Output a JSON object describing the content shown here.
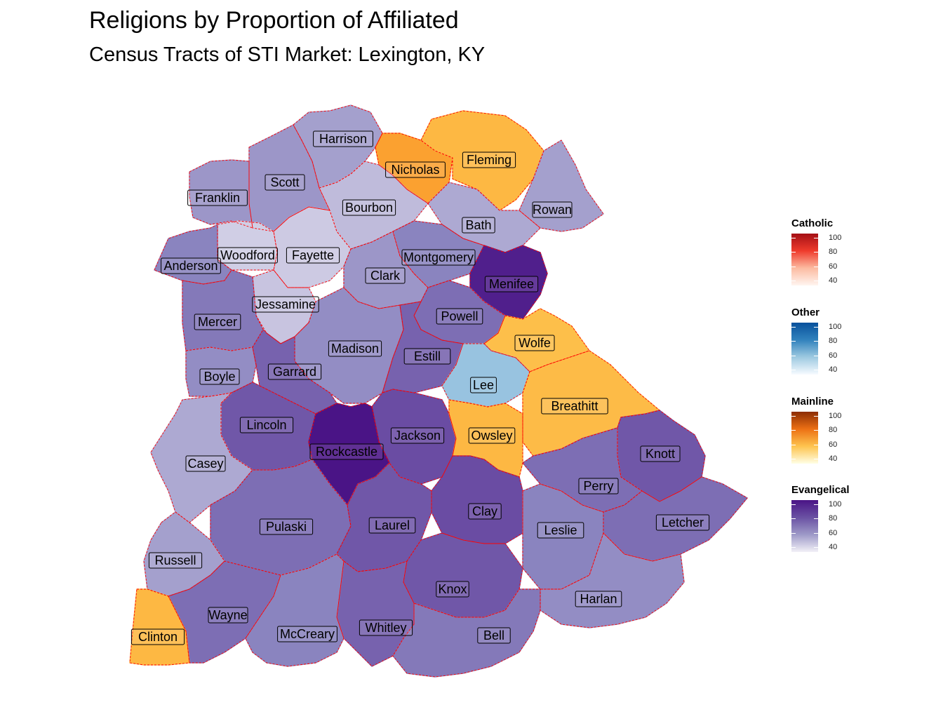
{
  "title": "Religions by Proportion of Affiliated",
  "subtitle": "Census Tracts of STI Market: Lexington, KY",
  "colors": {
    "evangelical_low": "#e2e0ee",
    "evangelical_mid": "#8a84bf",
    "evangelical_high": "#4a1486",
    "mainline_low": "#ffe7a3",
    "mainline_mid": "#fdbf4a",
    "mainline_high": "#fb9a29",
    "other_low": "#c6dbef",
    "other_high": "#2b8cbe",
    "boundary": "#ff0000"
  },
  "legend": [
    {
      "name": "Catholic",
      "ticks": [
        "100",
        "80",
        "60",
        "40"
      ],
      "colors": [
        "#a50f15",
        "#ef3b2c",
        "#fcbba1",
        "#fff5f0"
      ]
    },
    {
      "name": "Other",
      "ticks": [
        "100",
        "80",
        "60",
        "40"
      ],
      "colors": [
        "#08519c",
        "#3182bd",
        "#9ecae1",
        "#f7fbff"
      ]
    },
    {
      "name": "Mainline",
      "ticks": [
        "100",
        "80",
        "60",
        "40"
      ],
      "colors": [
        "#8c2d04",
        "#ec7014",
        "#fec44f",
        "#ffffe5"
      ]
    },
    {
      "name": "Evangelical",
      "ticks": [
        "100",
        "80",
        "60",
        "40"
      ],
      "colors": [
        "#4a1486",
        "#6a51a3",
        "#9e9ac8",
        "#f2f0f7"
      ]
    }
  ],
  "counties": [
    {
      "name": "Harrison",
      "religion": "Evangelical",
      "level": 0.35
    },
    {
      "name": "Nicholas",
      "religion": "Mainline",
      "level": 0.9
    },
    {
      "name": "Fleming",
      "religion": "Mainline",
      "level": 0.6
    },
    {
      "name": "Scott",
      "religion": "Evangelical",
      "level": 0.4
    },
    {
      "name": "Franklin",
      "religion": "Evangelical",
      "level": 0.4
    },
    {
      "name": "Bourbon",
      "religion": "Evangelical",
      "level": 0.2
    },
    {
      "name": "Rowan",
      "religion": "Evangelical",
      "level": 0.35
    },
    {
      "name": "Bath",
      "religion": "Evangelical",
      "level": 0.3
    },
    {
      "name": "Woodford",
      "religion": "Evangelical",
      "level": 0.1
    },
    {
      "name": "Fayette",
      "religion": "Evangelical",
      "level": 0.12
    },
    {
      "name": "Anderson",
      "religion": "Evangelical",
      "level": 0.5
    },
    {
      "name": "Montgomery",
      "religion": "Evangelical",
      "level": 0.5
    },
    {
      "name": "Clark",
      "religion": "Evangelical",
      "level": 0.4
    },
    {
      "name": "Menifee",
      "religion": "Evangelical",
      "level": 0.95
    },
    {
      "name": "Jessamine",
      "religion": "Evangelical",
      "level": 0.15
    },
    {
      "name": "Mercer",
      "religion": "Evangelical",
      "level": 0.55
    },
    {
      "name": "Powell",
      "religion": "Evangelical",
      "level": 0.6
    },
    {
      "name": "Wolfe",
      "religion": "Mainline",
      "level": 0.5
    },
    {
      "name": "Madison",
      "religion": "Evangelical",
      "level": 0.45
    },
    {
      "name": "Estill",
      "religion": "Evangelical",
      "level": 0.65
    },
    {
      "name": "Boyle",
      "religion": "Evangelical",
      "level": 0.45
    },
    {
      "name": "Garrard",
      "religion": "Evangelical",
      "level": 0.65
    },
    {
      "name": "Lee",
      "religion": "Other",
      "level": 0.3
    },
    {
      "name": "Breathitt",
      "religion": "Mainline",
      "level": 0.55
    },
    {
      "name": "Lincoln",
      "religion": "Evangelical",
      "level": 0.7
    },
    {
      "name": "Jackson",
      "religion": "Evangelical",
      "level": 0.75
    },
    {
      "name": "Owsley",
      "religion": "Mainline",
      "level": 0.6
    },
    {
      "name": "Rockcastle",
      "religion": "Evangelical",
      "level": 1.0
    },
    {
      "name": "Knott",
      "religion": "Evangelical",
      "level": 0.7
    },
    {
      "name": "Casey",
      "religion": "Evangelical",
      "level": 0.3
    },
    {
      "name": "Perry",
      "religion": "Evangelical",
      "level": 0.6
    },
    {
      "name": "Clay",
      "religion": "Evangelical",
      "level": 0.75
    },
    {
      "name": "Pulaski",
      "religion": "Evangelical",
      "level": 0.6
    },
    {
      "name": "Laurel",
      "religion": "Evangelical",
      "level": 0.7
    },
    {
      "name": "Leslie",
      "religion": "Evangelical",
      "level": 0.5
    },
    {
      "name": "Letcher",
      "religion": "Evangelical",
      "level": 0.6
    },
    {
      "name": "Russell",
      "religion": "Evangelical",
      "level": 0.35
    },
    {
      "name": "Knox",
      "religion": "Evangelical",
      "level": 0.7
    },
    {
      "name": "Harlan",
      "religion": "Evangelical",
      "level": 0.45
    },
    {
      "name": "Wayne",
      "religion": "Evangelical",
      "level": 0.6
    },
    {
      "name": "Whitley",
      "religion": "Evangelical",
      "level": 0.65
    },
    {
      "name": "McCreary",
      "religion": "Evangelical",
      "level": 0.5
    },
    {
      "name": "Bell",
      "religion": "Evangelical",
      "level": 0.55
    },
    {
      "name": "Clinton",
      "religion": "Mainline",
      "level": 0.6
    }
  ]
}
